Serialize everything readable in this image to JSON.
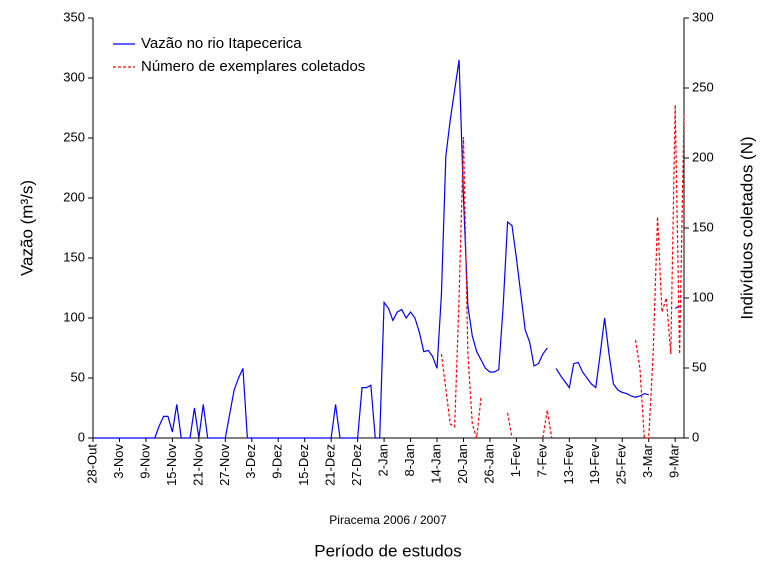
{
  "chart_data": {
    "type": "line",
    "subtitle": "Piracema 2006 / 2007",
    "xlabel": "Período de estudos",
    "ylabel": "Vazão (m³/s)",
    "y2label": "Indivíduos coletados (N)",
    "legend": "upper left",
    "ylim": [
      0,
      350
    ],
    "yticks": [
      0,
      50,
      100,
      150,
      200,
      250,
      300,
      350
    ],
    "y2lim": [
      0,
      300
    ],
    "y2ticks": [
      0,
      50,
      100,
      150,
      200,
      250,
      300
    ],
    "categories": [
      "28-Out",
      null,
      null,
      null,
      null,
      null,
      "3-Nov",
      null,
      null,
      null,
      null,
      null,
      "9-Nov",
      null,
      null,
      null,
      null,
      null,
      "15-Nov",
      null,
      null,
      null,
      null,
      null,
      "21-Nov",
      null,
      null,
      null,
      null,
      null,
      "27-Nov",
      null,
      null,
      null,
      null,
      null,
      "3-Dez",
      null,
      null,
      null,
      null,
      null,
      "9-Dez",
      null,
      null,
      null,
      null,
      null,
      "15-Dez",
      null,
      null,
      null,
      null,
      null,
      "21-Dez",
      null,
      null,
      null,
      null,
      null,
      "27-Dez",
      null,
      null,
      null,
      null,
      null,
      "2-Jan",
      null,
      null,
      null,
      null,
      null,
      "8-Jan",
      null,
      null,
      null,
      null,
      null,
      "14-Jan",
      null,
      null,
      null,
      null,
      null,
      "20-Jan",
      null,
      null,
      null,
      null,
      null,
      "26-Jan",
      null,
      null,
      null,
      null,
      null,
      "1-Fev",
      null,
      null,
      null,
      null,
      null,
      "7-Fev",
      null,
      null,
      null,
      null,
      null,
      "13-Fev",
      null,
      null,
      null,
      null,
      null,
      "19-Fev",
      null,
      null,
      null,
      null,
      null,
      "25-Fev",
      null,
      null,
      null,
      null,
      null,
      "3-Mar",
      null,
      null,
      null,
      null,
      null,
      "9-Mar",
      null,
      null
    ],
    "series": [
      {
        "name": "Vazão no rio Itapecerica",
        "color": "#0000ff",
        "style": "solid",
        "values": [
          0,
          0,
          0,
          0,
          0,
          0,
          0,
          0,
          0,
          0,
          0,
          0,
          0,
          0,
          0,
          10,
          18,
          18,
          5,
          28,
          0,
          0,
          0,
          25,
          0,
          28,
          0,
          0,
          0,
          0,
          0,
          20,
          40,
          50,
          58,
          0,
          0,
          0,
          0,
          0,
          0,
          0,
          0,
          0,
          0,
          0,
          0,
          0,
          0,
          0,
          0,
          0,
          0,
          0,
          0,
          28,
          0,
          0,
          0,
          0,
          0,
          42,
          42,
          44,
          0,
          0,
          113,
          108,
          98,
          105,
          107,
          100,
          105,
          100,
          88,
          72,
          73,
          68,
          58,
          120,
          235,
          265,
          290,
          315,
          200,
          110,
          85,
          72,
          65,
          58,
          55,
          55,
          57,
          110,
          180,
          177,
          150,
          120,
          90,
          80,
          60,
          62,
          70,
          75,
          null,
          58,
          52,
          47,
          42,
          62,
          63,
          55,
          50,
          45,
          42,
          70,
          100,
          70,
          45,
          40,
          38,
          37,
          35,
          34,
          35,
          37,
          36,
          null,
          null,
          null,
          null,
          null,
          108,
          110,
          null
        ]
      },
      {
        "name": "Número de exemplares coletados",
        "color": "#ff0000",
        "style": "dashed",
        "axis": "y2",
        "values": [
          null,
          null,
          null,
          null,
          null,
          null,
          null,
          null,
          null,
          null,
          null,
          null,
          null,
          null,
          null,
          null,
          null,
          null,
          null,
          null,
          null,
          null,
          null,
          null,
          null,
          null,
          null,
          null,
          null,
          null,
          null,
          null,
          null,
          null,
          null,
          null,
          null,
          null,
          null,
          null,
          null,
          null,
          null,
          null,
          null,
          null,
          null,
          null,
          null,
          null,
          null,
          null,
          null,
          null,
          null,
          null,
          null,
          null,
          null,
          null,
          null,
          null,
          null,
          null,
          null,
          null,
          null,
          null,
          null,
          null,
          null,
          null,
          null,
          null,
          null,
          null,
          null,
          null,
          null,
          60,
          35,
          10,
          8,
          100,
          215,
          60,
          10,
          0,
          30,
          null,
          null,
          null,
          null,
          null,
          18,
          0,
          null,
          null,
          null,
          null,
          null,
          null,
          0,
          20,
          0,
          null,
          null,
          null,
          null,
          null,
          null,
          null,
          null,
          null,
          null,
          null,
          null,
          null,
          null,
          null,
          null,
          null,
          null,
          70,
          50,
          0,
          0,
          60,
          158,
          90,
          100,
          60,
          238,
          60,
          232
        ]
      }
    ]
  }
}
